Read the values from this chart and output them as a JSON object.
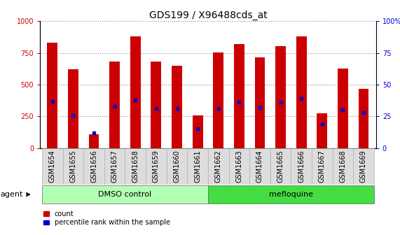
{
  "title": "GDS199 / X96488cds_at",
  "samples": [
    "GSM1654",
    "GSM1655",
    "GSM1656",
    "GSM1657",
    "GSM1658",
    "GSM1659",
    "GSM1660",
    "GSM1661",
    "GSM1662",
    "GSM1663",
    "GSM1664",
    "GSM1665",
    "GSM1666",
    "GSM1667",
    "GSM1668",
    "GSM1669"
  ],
  "count_values": [
    830,
    620,
    110,
    680,
    880,
    680,
    650,
    255,
    755,
    820,
    715,
    805,
    880,
    275,
    625,
    465
  ],
  "percentile_values": [
    37,
    26,
    12,
    33,
    38,
    31,
    31,
    15,
    31,
    36,
    32,
    36,
    39,
    19,
    30,
    28
  ],
  "bar_color": "#cc0000",
  "dot_color": "#0000cc",
  "ylim_left": [
    0,
    1000
  ],
  "ylim_right": [
    0,
    100
  ],
  "yticks_left": [
    0,
    250,
    500,
    750,
    1000
  ],
  "yticks_right": [
    0,
    25,
    50,
    75,
    100
  ],
  "groups": [
    {
      "label": "DMSO control",
      "start": 0,
      "end": 7
    },
    {
      "label": "mefloquine",
      "start": 8,
      "end": 15
    }
  ],
  "group_color_light": "#b3ffb3",
  "group_color_dark": "#44dd44",
  "agent_label": "agent",
  "legend_count": "count",
  "legend_percentile": "percentile rank within the sample",
  "background_color": "#ffffff",
  "title_fontsize": 10,
  "tick_fontsize": 7,
  "bar_width": 0.5,
  "xlim": [
    -0.6,
    15.6
  ]
}
